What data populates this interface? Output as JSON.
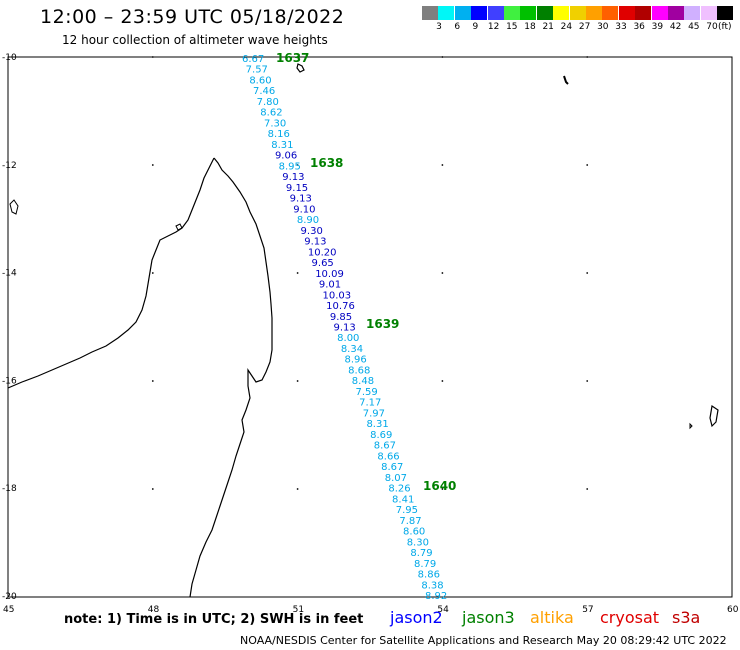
{
  "title": "12:00 – 23:59 UTC 05/18/2022",
  "subtitle": "12 hour collection of altimeter wave heights",
  "colorbar": {
    "colors": [
      "#7f7f7f",
      "#00f7f7",
      "#00b0f0",
      "#0000ff",
      "#4040ff",
      "#40f040",
      "#00c000",
      "#008000",
      "#ffff00",
      "#f0d000",
      "#ffa000",
      "#ff6000",
      "#e00000",
      "#b00000",
      "#ff00ff",
      "#a000a0",
      "#d0b0ff",
      "#f0c0ff",
      "#000000"
    ],
    "ticks": [
      "3",
      "6",
      "9",
      "12",
      "15",
      "18",
      "21",
      "24",
      "27",
      "30",
      "33",
      "36",
      "39",
      "42",
      "45",
      "70"
    ],
    "unit": "(ft)"
  },
  "axes": {
    "lat_labels": [
      "-10",
      "-12",
      "-14",
      "-16",
      "-18",
      "-20"
    ],
    "lon_labels": [
      "45",
      "48",
      "51",
      "54",
      "57",
      "60"
    ]
  },
  "pass_times": [
    "1637",
    "1638",
    "1639",
    "1640"
  ],
  "measurements": [
    {
      "v": "6.67",
      "s": "j3"
    },
    {
      "v": "7.57",
      "s": "j3"
    },
    {
      "v": "8.60",
      "s": "j3"
    },
    {
      "v": "7.46",
      "s": "j3"
    },
    {
      "v": "7.80",
      "s": "j3"
    },
    {
      "v": "8.62",
      "s": "j3"
    },
    {
      "v": "7.30",
      "s": "j3"
    },
    {
      "v": "8.16",
      "s": "j3"
    },
    {
      "v": "8.31",
      "s": "j3"
    },
    {
      "v": "9.06",
      "s": "j9"
    },
    {
      "v": "8.95",
      "s": "j3"
    },
    {
      "v": "9.13",
      "s": "j9"
    },
    {
      "v": "9.15",
      "s": "j9"
    },
    {
      "v": "9.13",
      "s": "j9"
    },
    {
      "v": "9.10",
      "s": "j9"
    },
    {
      "v": "8.90",
      "s": "j3"
    },
    {
      "v": "9.30",
      "s": "j9"
    },
    {
      "v": "9.13",
      "s": "j9"
    },
    {
      "v": "10.20",
      "s": "j9"
    },
    {
      "v": "9.65",
      "s": "j9"
    },
    {
      "v": "10.09",
      "s": "j9"
    },
    {
      "v": "9.01",
      "s": "j9"
    },
    {
      "v": "10.03",
      "s": "j9"
    },
    {
      "v": "10.76",
      "s": "j9"
    },
    {
      "v": "9.85",
      "s": "j9"
    },
    {
      "v": "9.13",
      "s": "j9"
    },
    {
      "v": "8.00",
      "s": "j3"
    },
    {
      "v": "8.34",
      "s": "j3"
    },
    {
      "v": "8.96",
      "s": "j3"
    },
    {
      "v": "8.68",
      "s": "j3"
    },
    {
      "v": "8.48",
      "s": "j3"
    },
    {
      "v": "7.59",
      "s": "j3"
    },
    {
      "v": "7.17",
      "s": "j3"
    },
    {
      "v": "7.97",
      "s": "j3"
    },
    {
      "v": "8.31",
      "s": "j3"
    },
    {
      "v": "8.69",
      "s": "j3"
    },
    {
      "v": "8.67",
      "s": "j3"
    },
    {
      "v": "8.66",
      "s": "j3"
    },
    {
      "v": "8.67",
      "s": "j3"
    },
    {
      "v": "8.07",
      "s": "j3"
    },
    {
      "v": "8.26",
      "s": "j3"
    },
    {
      "v": "8.41",
      "s": "j3"
    },
    {
      "v": "7.95",
      "s": "j3"
    },
    {
      "v": "7.87",
      "s": "j3"
    },
    {
      "v": "8.60",
      "s": "j3"
    },
    {
      "v": "8.30",
      "s": "j3"
    },
    {
      "v": "8.79",
      "s": "j3"
    },
    {
      "v": "8.79",
      "s": "j3"
    },
    {
      "v": "8.86",
      "s": "j3"
    },
    {
      "v": "8.38",
      "s": "j3"
    },
    {
      "v": "8.92",
      "s": "j3"
    }
  ],
  "value_colors": {
    "j3": "#00a8e8",
    "j9": "#0000c0"
  },
  "pass_time_color": "#008000",
  "note": "note:  1) Time is in UTC; 2) SWH is in feet",
  "satellites": [
    {
      "name": "jason2",
      "color": "#0000ff"
    },
    {
      "name": "jason3",
      "color": "#008000"
    },
    {
      "name": "altika",
      "color": "#ffa000"
    },
    {
      "name": "cryosat",
      "color": "#e00000"
    },
    {
      "name": "s3a",
      "color": "#c00000"
    }
  ],
  "credit": "NOAA/NESDIS Center for Satellite Applications and Research     May 20 08:29:42 UTC 2022"
}
